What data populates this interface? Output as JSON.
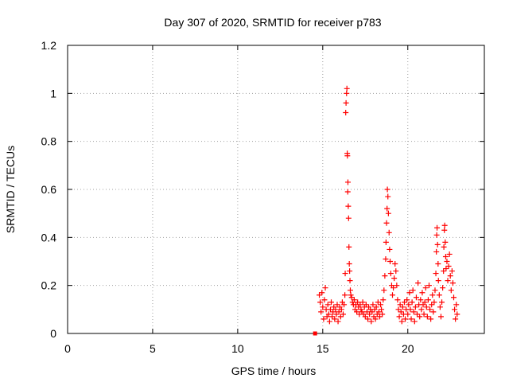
{
  "chart_data": {
    "type": "scatter",
    "title": "Day 307 of 2020, SRMTID for receiver p783",
    "xlabel": "GPS time / hours",
    "ylabel": "SRMTID / TECUs",
    "xlim": [
      0,
      24.5
    ],
    "ylim": [
      0,
      1.2
    ],
    "xticks": [
      0,
      5,
      10,
      15,
      20
    ],
    "xtick_labels": [
      "0",
      "5",
      "10",
      "15",
      "20"
    ],
    "yticks": [
      0,
      0.2,
      0.4,
      0.6,
      0.8,
      1.0,
      1.2
    ],
    "ytick_labels": [
      "0",
      "0.2",
      "0.4",
      "0.6",
      "0.8",
      "1",
      "1.2"
    ],
    "grid": true,
    "marker": "+",
    "series_color": "#ff0000",
    "isolated_point": {
      "x": 14.55,
      "y": 0.0
    },
    "points": [
      [
        14.8,
        0.16
      ],
      [
        14.85,
        0.13
      ],
      [
        14.9,
        0.09
      ],
      [
        14.95,
        0.17
      ],
      [
        15.0,
        0.11
      ],
      [
        15.05,
        0.06
      ],
      [
        15.1,
        0.14
      ],
      [
        15.15,
        0.19
      ],
      [
        15.2,
        0.1
      ],
      [
        15.25,
        0.07
      ],
      [
        15.3,
        0.12
      ],
      [
        15.35,
        0.08
      ],
      [
        15.4,
        0.05
      ],
      [
        15.45,
        0.1
      ],
      [
        15.5,
        0.13
      ],
      [
        15.55,
        0.07
      ],
      [
        15.6,
        0.09
      ],
      [
        15.65,
        0.11
      ],
      [
        15.7,
        0.06
      ],
      [
        15.75,
        0.1
      ],
      [
        15.8,
        0.08
      ],
      [
        15.85,
        0.12
      ],
      [
        15.9,
        0.05
      ],
      [
        15.95,
        0.09
      ],
      [
        16.0,
        0.11
      ],
      [
        16.05,
        0.07
      ],
      [
        16.1,
        0.1
      ],
      [
        16.15,
        0.13
      ],
      [
        16.2,
        0.08
      ],
      [
        16.25,
        0.12
      ],
      [
        16.3,
        0.16
      ],
      [
        16.32,
        0.25
      ],
      [
        16.35,
        0.92
      ],
      [
        16.37,
        0.96
      ],
      [
        16.4,
        1.0
      ],
      [
        16.42,
        1.02
      ],
      [
        16.44,
        0.75
      ],
      [
        16.45,
        0.74
      ],
      [
        16.47,
        0.59
      ],
      [
        16.48,
        0.63
      ],
      [
        16.5,
        0.53
      ],
      [
        16.52,
        0.48
      ],
      [
        16.54,
        0.36
      ],
      [
        16.56,
        0.29
      ],
      [
        16.58,
        0.26
      ],
      [
        16.6,
        0.22
      ],
      [
        16.62,
        0.18
      ],
      [
        16.65,
        0.16
      ],
      [
        16.7,
        0.15
      ],
      [
        16.75,
        0.13
      ],
      [
        16.8,
        0.12
      ],
      [
        16.85,
        0.14
      ],
      [
        16.9,
        0.1
      ],
      [
        16.95,
        0.12
      ],
      [
        17.0,
        0.09
      ],
      [
        17.05,
        0.13
      ],
      [
        17.1,
        0.11
      ],
      [
        17.15,
        0.08
      ],
      [
        17.2,
        0.12
      ],
      [
        17.25,
        0.1
      ],
      [
        17.3,
        0.09
      ],
      [
        17.35,
        0.13
      ],
      [
        17.4,
        0.08
      ],
      [
        17.45,
        0.11
      ],
      [
        17.5,
        0.07
      ],
      [
        17.55,
        0.12
      ],
      [
        17.6,
        0.09
      ],
      [
        17.65,
        0.06
      ],
      [
        17.7,
        0.11
      ],
      [
        17.75,
        0.08
      ],
      [
        17.8,
        0.1
      ],
      [
        17.85,
        0.05
      ],
      [
        17.9,
        0.09
      ],
      [
        17.95,
        0.12
      ],
      [
        18.0,
        0.07
      ],
      [
        18.05,
        0.1
      ],
      [
        18.1,
        0.06
      ],
      [
        18.15,
        0.11
      ],
      [
        18.2,
        0.08
      ],
      [
        18.25,
        0.13
      ],
      [
        18.3,
        0.09
      ],
      [
        18.35,
        0.07
      ],
      [
        18.4,
        0.12
      ],
      [
        18.45,
        0.1
      ],
      [
        18.5,
        0.08
      ],
      [
        18.55,
        0.14
      ],
      [
        18.6,
        0.18
      ],
      [
        18.65,
        0.24
      ],
      [
        18.7,
        0.31
      ],
      [
        18.72,
        0.38
      ],
      [
        18.75,
        0.46
      ],
      [
        18.78,
        0.52
      ],
      [
        18.8,
        0.6
      ],
      [
        18.83,
        0.57
      ],
      [
        18.86,
        0.5
      ],
      [
        18.9,
        0.42
      ],
      [
        18.93,
        0.35
      ],
      [
        18.96,
        0.3
      ],
      [
        19.0,
        0.25
      ],
      [
        19.05,
        0.2
      ],
      [
        19.1,
        0.16
      ],
      [
        19.15,
        0.19
      ],
      [
        19.2,
        0.23
      ],
      [
        19.25,
        0.29
      ],
      [
        19.3,
        0.26
      ],
      [
        19.35,
        0.2
      ],
      [
        19.4,
        0.14
      ],
      [
        19.45,
        0.1
      ],
      [
        19.5,
        0.07
      ],
      [
        19.55,
        0.12
      ],
      [
        19.6,
        0.09
      ],
      [
        19.65,
        0.05
      ],
      [
        19.7,
        0.11
      ],
      [
        19.75,
        0.08
      ],
      [
        19.8,
        0.13
      ],
      [
        19.85,
        0.06
      ],
      [
        19.9,
        0.1
      ],
      [
        19.95,
        0.14
      ],
      [
        20.0,
        0.08
      ],
      [
        20.05,
        0.12
      ],
      [
        20.1,
        0.17
      ],
      [
        20.15,
        0.1
      ],
      [
        20.2,
        0.06
      ],
      [
        20.25,
        0.13
      ],
      [
        20.3,
        0.18
      ],
      [
        20.35,
        0.09
      ],
      [
        20.4,
        0.05
      ],
      [
        20.45,
        0.11
      ],
      [
        20.5,
        0.15
      ],
      [
        20.55,
        0.08
      ],
      [
        20.6,
        0.21
      ],
      [
        20.65,
        0.12
      ],
      [
        20.7,
        0.07
      ],
      [
        20.75,
        0.14
      ],
      [
        20.8,
        0.1
      ],
      [
        20.85,
        0.17
      ],
      [
        20.9,
        0.12
      ],
      [
        20.95,
        0.08
      ],
      [
        21.0,
        0.13
      ],
      [
        21.05,
        0.19
      ],
      [
        21.1,
        0.11
      ],
      [
        21.15,
        0.07
      ],
      [
        21.2,
        0.14
      ],
      [
        21.25,
        0.2
      ],
      [
        21.3,
        0.1
      ],
      [
        21.35,
        0.06
      ],
      [
        21.4,
        0.12
      ],
      [
        21.45,
        0.16
      ],
      [
        21.5,
        0.09
      ],
      [
        21.55,
        0.13
      ],
      [
        21.6,
        0.18
      ],
      [
        21.65,
        0.25
      ],
      [
        21.68,
        0.34
      ],
      [
        21.7,
        0.41
      ],
      [
        21.72,
        0.44
      ],
      [
        21.75,
        0.37
      ],
      [
        21.78,
        0.29
      ],
      [
        21.8,
        0.22
      ],
      [
        21.85,
        0.16
      ],
      [
        21.9,
        0.11
      ],
      [
        21.95,
        0.07
      ],
      [
        22.0,
        0.13
      ],
      [
        22.05,
        0.19
      ],
      [
        22.1,
        0.26
      ],
      [
        22.12,
        0.36
      ],
      [
        22.15,
        0.43
      ],
      [
        22.17,
        0.45
      ],
      [
        22.2,
        0.38
      ],
      [
        22.23,
        0.32
      ],
      [
        22.25,
        0.27
      ],
      [
        22.3,
        0.3
      ],
      [
        22.35,
        0.22
      ],
      [
        22.4,
        0.28
      ],
      [
        22.45,
        0.33
      ],
      [
        22.5,
        0.24
      ],
      [
        22.55,
        0.18
      ],
      [
        22.6,
        0.26
      ],
      [
        22.65,
        0.21
      ],
      [
        22.7,
        0.15
      ],
      [
        22.75,
        0.1
      ],
      [
        22.8,
        0.06
      ],
      [
        22.85,
        0.12
      ],
      [
        22.9,
        0.08
      ]
    ]
  }
}
